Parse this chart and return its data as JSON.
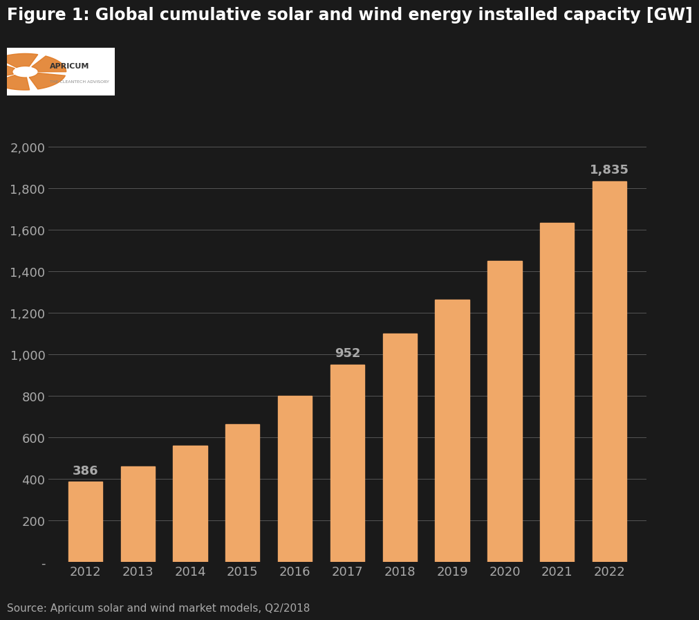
{
  "title": "Figure 1: Global cumulative solar and wind energy installed capacity [GW]",
  "years": [
    2012,
    2013,
    2014,
    2015,
    2016,
    2017,
    2018,
    2019,
    2020,
    2021,
    2022
  ],
  "values": [
    386,
    460,
    560,
    665,
    800,
    952,
    1100,
    1265,
    1450,
    1635,
    1835
  ],
  "bar_color": "#F0A868",
  "bar_edgecolor": "#F0A868",
  "background_color": "#1a1a1a",
  "text_color": "#aaaaaa",
  "title_color": "#ffffff",
  "grid_color": "#555555",
  "ylim": [
    0,
    2000
  ],
  "yticks": [
    0,
    200,
    400,
    600,
    800,
    1000,
    1200,
    1400,
    1600,
    1800,
    2000
  ],
  "ytick_labels": [
    "-",
    "200",
    "400",
    "600",
    "800",
    "1,000",
    "1,200",
    "1,400",
    "1,600",
    "1,800",
    "2,000"
  ],
  "source_text": "Source: Apricum solar and wind market models, Q2/2018",
  "labeled_years": [
    2012,
    2017,
    2022
  ],
  "labeled_values": [
    386,
    952,
    1835
  ]
}
